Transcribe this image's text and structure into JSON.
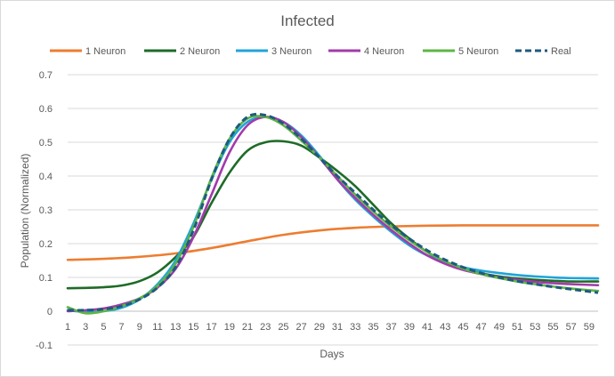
{
  "chart_data": {
    "type": "line",
    "title": "Infected",
    "xlabel": "Days",
    "ylabel": "Population (Normalized)",
    "ylim": [
      -0.1,
      0.7
    ],
    "yticks": [
      "-0.1",
      "0",
      "0.1",
      "0.2",
      "0.3",
      "0.4",
      "0.5",
      "0.6",
      "0.7"
    ],
    "xlim": [
      1,
      60
    ],
    "xticks": [
      "1",
      "3",
      "5",
      "7",
      "9",
      "11",
      "13",
      "15",
      "17",
      "19",
      "21",
      "23",
      "25",
      "27",
      "29",
      "31",
      "33",
      "35",
      "37",
      "39",
      "41",
      "43",
      "45",
      "47",
      "49",
      "51",
      "53",
      "55",
      "57",
      "59"
    ],
    "grid": true,
    "legend_position": "top",
    "series": [
      {
        "name": "1 Neuron",
        "color": "#ed7d31",
        "dashed": false,
        "x": [
          1,
          5,
          9,
          13,
          17,
          21,
          25,
          29,
          33,
          37,
          41,
          45,
          49,
          53,
          57,
          60
        ],
        "values": [
          0.152,
          0.155,
          0.161,
          0.171,
          0.187,
          0.207,
          0.226,
          0.239,
          0.247,
          0.251,
          0.253,
          0.254,
          0.254,
          0.254,
          0.254,
          0.254
        ]
      },
      {
        "name": "2 Neuron",
        "color": "#1e6b28",
        "dashed": false,
        "x": [
          1,
          3,
          5,
          7,
          9,
          11,
          13,
          15,
          17,
          19,
          21,
          23,
          25,
          27,
          29,
          31,
          33,
          35,
          37,
          39,
          41,
          43,
          45,
          47,
          49,
          51,
          53,
          55,
          57,
          60
        ],
        "values": [
          0.068,
          0.069,
          0.071,
          0.076,
          0.089,
          0.115,
          0.16,
          0.22,
          0.32,
          0.41,
          0.475,
          0.5,
          0.503,
          0.49,
          0.455,
          0.415,
          0.37,
          0.315,
          0.26,
          0.215,
          0.175,
          0.145,
          0.125,
          0.112,
          0.103,
          0.097,
          0.093,
          0.09,
          0.088,
          0.088
        ]
      },
      {
        "name": "3 Neuron",
        "color": "#1fa5d8",
        "dashed": false,
        "x": [
          1,
          3,
          5,
          7,
          9,
          11,
          13,
          15,
          17,
          19,
          21,
          23,
          25,
          27,
          29,
          31,
          33,
          35,
          37,
          39,
          41,
          43,
          45,
          47,
          49,
          51,
          53,
          55,
          57,
          60
        ],
        "values": [
          0.003,
          -0.002,
          0.0,
          0.01,
          0.035,
          0.08,
          0.15,
          0.26,
          0.39,
          0.5,
          0.56,
          0.575,
          0.56,
          0.52,
          0.46,
          0.39,
          0.33,
          0.28,
          0.235,
          0.195,
          0.165,
          0.145,
          0.13,
          0.12,
          0.113,
          0.107,
          0.103,
          0.1,
          0.098,
          0.097
        ]
      },
      {
        "name": "4 Neuron",
        "color": "#a33aaa",
        "dashed": false,
        "x": [
          1,
          3,
          5,
          7,
          9,
          11,
          13,
          15,
          17,
          19,
          21,
          23,
          25,
          27,
          29,
          31,
          33,
          35,
          37,
          39,
          41,
          43,
          45,
          47,
          49,
          51,
          53,
          55,
          57,
          60
        ],
        "values": [
          0.0,
          0.003,
          0.008,
          0.02,
          0.038,
          0.07,
          0.125,
          0.22,
          0.345,
          0.47,
          0.55,
          0.575,
          0.56,
          0.515,
          0.455,
          0.39,
          0.335,
          0.285,
          0.24,
          0.2,
          0.165,
          0.14,
          0.122,
          0.11,
          0.1,
          0.093,
          0.087,
          0.083,
          0.08,
          0.077
        ]
      },
      {
        "name": "5 Neuron",
        "color": "#5fb546",
        "dashed": false,
        "x": [
          1,
          3,
          5,
          7,
          9,
          11,
          13,
          15,
          17,
          19,
          21,
          23,
          25,
          27,
          29,
          31,
          33,
          35,
          37,
          39,
          41,
          43,
          45,
          47,
          49,
          51,
          53,
          55,
          57,
          60
        ],
        "values": [
          0.012,
          -0.006,
          0.0,
          0.015,
          0.038,
          0.075,
          0.14,
          0.25,
          0.395,
          0.51,
          0.57,
          0.575,
          0.55,
          0.505,
          0.455,
          0.4,
          0.345,
          0.295,
          0.25,
          0.21,
          0.175,
          0.148,
          0.126,
          0.11,
          0.098,
          0.088,
          0.08,
          0.073,
          0.067,
          0.06
        ]
      },
      {
        "name": "Real",
        "color": "#1f5a7e",
        "dashed": true,
        "x": [
          1,
          3,
          5,
          7,
          9,
          11,
          13,
          15,
          17,
          19,
          21,
          23,
          25,
          27,
          29,
          31,
          33,
          35,
          37,
          39,
          41,
          43,
          45,
          47,
          49,
          51,
          53,
          55,
          57,
          60
        ],
        "values": [
          0.003,
          0.003,
          0.006,
          0.015,
          0.035,
          0.07,
          0.13,
          0.24,
          0.39,
          0.51,
          0.575,
          0.58,
          0.555,
          0.51,
          0.455,
          0.4,
          0.35,
          0.3,
          0.255,
          0.215,
          0.18,
          0.152,
          0.13,
          0.113,
          0.1,
          0.089,
          0.08,
          0.072,
          0.065,
          0.055
        ]
      }
    ]
  }
}
